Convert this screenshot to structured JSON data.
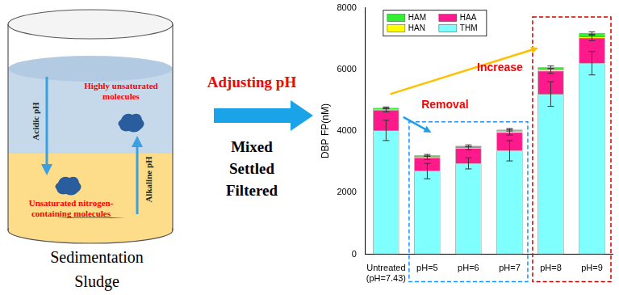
{
  "chart_data": {
    "type": "bar",
    "stacked": true,
    "y_label": "DBP FP(nM)",
    "categories": [
      "Untreated (pH=7.43)",
      "pH=5",
      "pH=6",
      "pH=7",
      "pH=8",
      "pH=9"
    ],
    "series": [
      {
        "name": "THM",
        "color": "#80ffff",
        "values": [
          4020,
          2700,
          2950,
          3360,
          5200,
          6200
        ],
        "errors": [
          330,
          250,
          180,
          330,
          400,
          380
        ]
      },
      {
        "name": "HAA",
        "color": "#ff1a8c",
        "values": [
          660,
          430,
          490,
          600,
          750,
          820
        ],
        "errors": [
          60,
          60,
          50,
          90,
          80,
          90
        ]
      },
      {
        "name": "HAN",
        "color": "#ffff00",
        "values": [
          30,
          30,
          30,
          30,
          40,
          50
        ]
      },
      {
        "name": "HAM",
        "color": "#33ee33",
        "values": [
          40,
          50,
          50,
          50,
          80,
          110
        ],
        "errors": [
          30,
          30,
          30,
          40,
          40,
          40
        ]
      }
    ],
    "ylim": [
      0,
      8000
    ],
    "yticks": [
      0,
      2000,
      4000,
      6000,
      8000
    ],
    "grid": false,
    "legend": "top-left",
    "annotations": [
      "Removal",
      "Increase"
    ]
  },
  "diagram": {
    "beaker": {
      "top_label": [
        "Highly unsaturated",
        "molecules"
      ],
      "bottom_label": [
        "Unsaturated nitrogen-",
        "containing molecules"
      ],
      "down_arrow": "Acidic pH",
      "up_arrow": "Alkaline pH",
      "caption": [
        "Sedimentation",
        "Sludge"
      ]
    },
    "process": {
      "title": "Adjusting pH",
      "steps": [
        "Mixed",
        "Settled",
        "Filtered"
      ]
    }
  }
}
